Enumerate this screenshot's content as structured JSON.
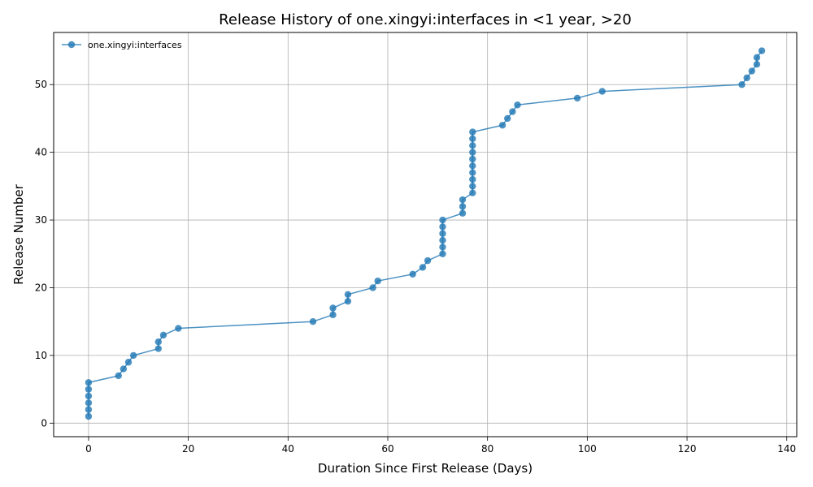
{
  "chart_data": {
    "type": "line",
    "title": "Release History of one.xingyi:interfaces in <1 year, >20",
    "xlabel": "Duration Since First Release (Days)",
    "ylabel": "Release Number",
    "xlim": [
      -7,
      142
    ],
    "ylim": [
      -2,
      57.7
    ],
    "xticks": [
      0,
      20,
      40,
      60,
      80,
      100,
      120,
      140
    ],
    "yticks": [
      0,
      10,
      20,
      30,
      40,
      50
    ],
    "grid": true,
    "legend": "top-left",
    "series": [
      {
        "name": "one.xingyi:interfaces",
        "color": "#1f77b4",
        "marker": "circle",
        "x": [
          0,
          0,
          0,
          0,
          0,
          0,
          6,
          7,
          8,
          9,
          14,
          14,
          15,
          18,
          45,
          49,
          49,
          52,
          52,
          57,
          58,
          65,
          67,
          68,
          71,
          71,
          71,
          71,
          71,
          71,
          75,
          75,
          75,
          77,
          77,
          77,
          77,
          77,
          77,
          77,
          77,
          77,
          77,
          83,
          84,
          85,
          86,
          98,
          103,
          131,
          132,
          133,
          134,
          134,
          135
        ],
        "y": [
          1,
          2,
          3,
          4,
          5,
          6,
          7,
          8,
          9,
          10,
          11,
          12,
          13,
          14,
          15,
          16,
          17,
          18,
          19,
          20,
          21,
          22,
          23,
          24,
          25,
          26,
          27,
          28,
          29,
          30,
          31,
          32,
          33,
          34,
          35,
          36,
          37,
          38,
          39,
          40,
          41,
          42,
          43,
          44,
          45,
          46,
          47,
          48,
          49,
          50,
          51,
          52,
          53,
          54,
          55
        ]
      }
    ]
  }
}
